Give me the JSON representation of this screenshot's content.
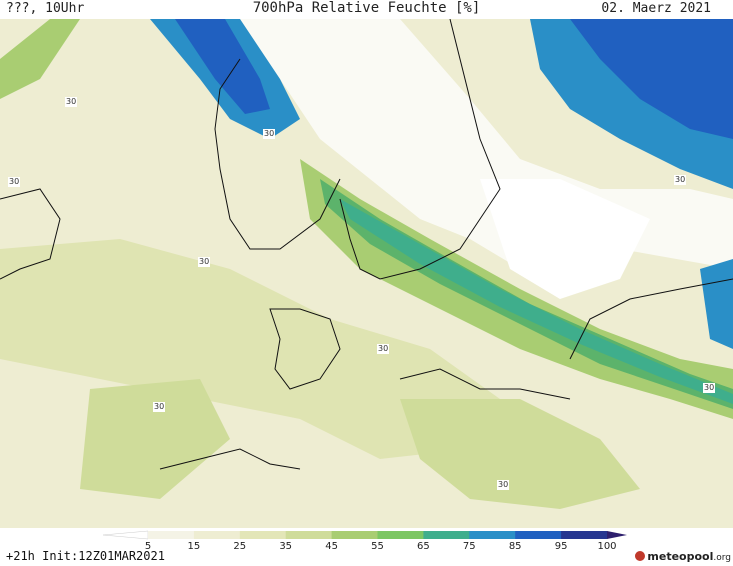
{
  "header": {
    "left": "???, 10Uhr",
    "title": "700hPa Relative Feuchte [%]",
    "date": "02. Maerz 2021"
  },
  "footer": {
    "run": "+21h Init:12Z01MAR2021"
  },
  "colorbar": {
    "labels": [
      "5",
      "15",
      "25",
      "35",
      "45",
      "55",
      "65",
      "75",
      "85",
      "95",
      "100"
    ],
    "colors": [
      "#ffffff",
      "#f4f3e6",
      "#eeedd2",
      "#e3e6b8",
      "#cfdc9a",
      "#a9cd72",
      "#7cc663",
      "#3fae8c",
      "#2a8fc7",
      "#2060c0",
      "#263690",
      "#2d1f6d"
    ]
  },
  "map": {
    "isolines": [
      "30",
      "30",
      "30",
      "30",
      "30",
      "30",
      "30",
      "30",
      "30"
    ],
    "colors": {
      "land": "#eeedd2",
      "dry": "#fafaf4",
      "moist": "#cfdc9a",
      "wet": "#5cb36b",
      "very_wet": "#2a8fc7",
      "saturated": "#2060c0",
      "coast": "#111111"
    }
  },
  "logo": {
    "name": "meteopool",
    "suffix": ".org"
  }
}
